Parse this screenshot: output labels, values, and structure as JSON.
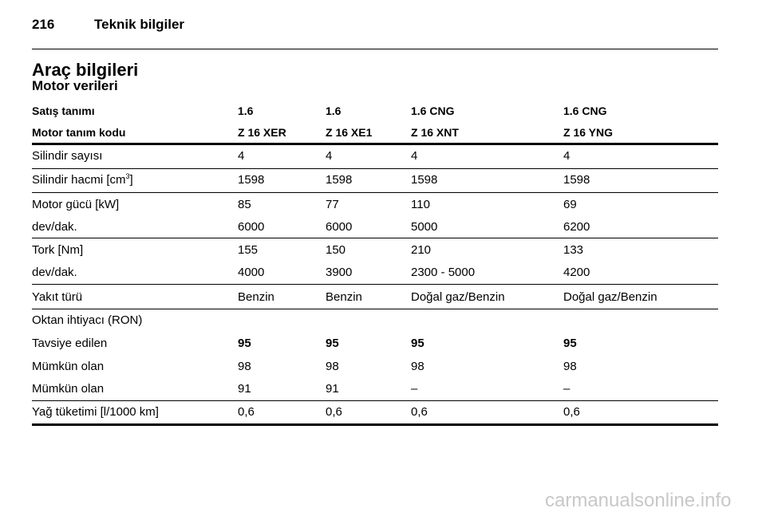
{
  "header": {
    "page_number": "216",
    "section": "Teknik bilgiler"
  },
  "title": "Araç bilgileri",
  "subtitle": "Motor verileri",
  "table": {
    "header_rows": [
      [
        "Satış tanımı",
        "1.6",
        "1.6",
        "1.6 CNG",
        "1.6 CNG"
      ],
      [
        "Motor tanım kodu",
        "Z 16 XER",
        "Z 16 XE1",
        "Z 16 XNT",
        "Z 16 YNG"
      ]
    ],
    "rows": [
      [
        "Silindir sayısı",
        "4",
        "4",
        "4",
        "4"
      ],
      [
        [
          "Silindir hacmi [cm",
          "3",
          "]"
        ],
        "1598",
        "1598",
        "1598",
        "1598"
      ],
      [
        "Motor gücü [kW]",
        "85",
        "77",
        "110",
        "69"
      ],
      [
        "dev/dak.",
        "6000",
        "6000",
        "5000",
        "6200"
      ],
      [
        "Tork [Nm]",
        "155",
        "150",
        "210",
        "133"
      ],
      [
        "dev/dak.",
        "4000",
        "3900",
        "2300 - 5000",
        "4200"
      ],
      [
        "Yakıt türü",
        "Benzin",
        "Benzin",
        "Doğal gaz/Benzin",
        "Doğal gaz/Benzin"
      ],
      [
        "Oktan ihtiyacı (RON)"
      ],
      [
        "Tavsiye edilen",
        "95",
        "95",
        "95",
        "95"
      ],
      [
        "Mümkün olan",
        "98",
        "98",
        "98",
        "98"
      ],
      [
        "Mümkün olan",
        "91",
        "91",
        "–",
        "–"
      ],
      [
        "Yağ tüketimi [l/1000 km]",
        "0,6",
        "0,6",
        "0,6",
        "0,6"
      ]
    ]
  },
  "watermark": "carmanualsonline.info"
}
